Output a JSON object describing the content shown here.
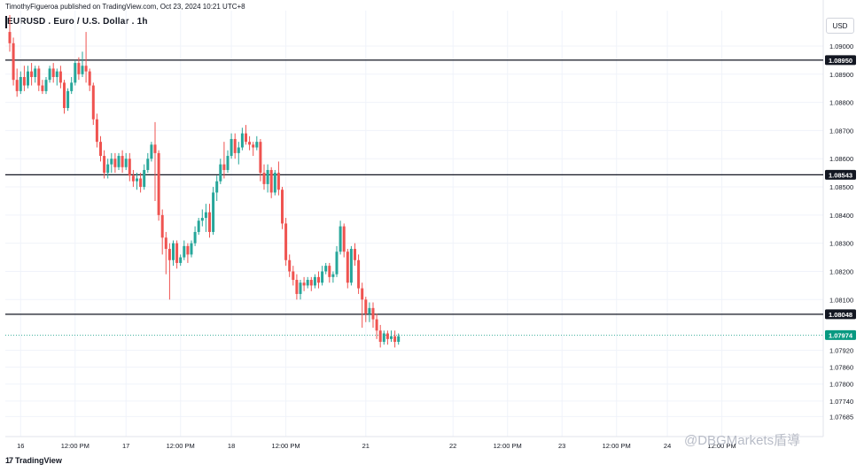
{
  "header": {
    "published": "TimothyFigueroa published on TradingView.com, Oct 23, 2024 10:21 UTC+8",
    "title": "EURUSD . Euro / U.S. Dollar . 1h",
    "currency": "USD"
  },
  "watermark": "@DBGMarkets盾導",
  "brand": {
    "logo": "17",
    "label": "TradingView"
  },
  "colors": {
    "up": "#26a69a",
    "down": "#ef5350",
    "level": "#131722",
    "current": "#089981",
    "grid": "#f0f3fa"
  },
  "chart_data": {
    "type": "candlestick",
    "symbol": "EURUSD",
    "timeframe": "1h",
    "ylim": [
      1.0762,
      1.0911
    ],
    "yticks": [
      {
        "value": 1.09,
        "label": "1.09000"
      },
      {
        "value": 1.089,
        "label": "1.08900"
      },
      {
        "value": 1.088,
        "label": "1.08800"
      },
      {
        "value": 1.087,
        "label": "1.08700"
      },
      {
        "value": 1.086,
        "label": "1.08600"
      },
      {
        "value": 1.085,
        "label": "1.08500"
      },
      {
        "value": 1.084,
        "label": "1.08400"
      },
      {
        "value": 1.083,
        "label": "1.08300"
      },
      {
        "value": 1.082,
        "label": "1.08200"
      },
      {
        "value": 1.081,
        "label": "1.08100"
      },
      {
        "value": 1.0792,
        "label": "1.07920"
      },
      {
        "value": 1.0786,
        "label": "1.07860"
      },
      {
        "value": 1.078,
        "label": "1.07800"
      },
      {
        "value": 1.0774,
        "label": "1.07740"
      },
      {
        "value": 1.07685,
        "label": "1.07685"
      }
    ],
    "xticks": [
      {
        "bar": 3,
        "label": "16"
      },
      {
        "bar": 18,
        "label": "12:00 PM"
      },
      {
        "bar": 32,
        "label": "17"
      },
      {
        "bar": 47,
        "label": "12:00 PM"
      },
      {
        "bar": 61,
        "label": "18"
      },
      {
        "bar": 76,
        "label": "12:00 PM"
      },
      {
        "bar": 98,
        "label": "21"
      },
      {
        "bar": 122,
        "label": "22"
      },
      {
        "bar": 137,
        "label": "12:00 PM"
      },
      {
        "bar": 152,
        "label": "23"
      },
      {
        "bar": 167,
        "label": "12:00 PM"
      },
      {
        "bar": 181,
        "label": "24"
      },
      {
        "bar": 196,
        "label": "12:00 PM"
      }
    ],
    "levels": [
      {
        "value": 1.0895,
        "label": "1.08950"
      },
      {
        "value": 1.08543,
        "label": "1.08543"
      },
      {
        "value": 1.08048,
        "label": "1.08048"
      }
    ],
    "current": {
      "value": 1.07974,
      "label": "1.07974"
    },
    "ohlc": [
      [
        1.0905,
        1.0911,
        1.0898,
        1.0901
      ],
      [
        1.0901,
        1.0903,
        1.0886,
        1.0888
      ],
      [
        1.0888,
        1.0892,
        1.0882,
        1.0884
      ],
      [
        1.0884,
        1.0891,
        1.0883,
        1.0889
      ],
      [
        1.0889,
        1.0893,
        1.0884,
        1.0886
      ],
      [
        1.0886,
        1.0893,
        1.0885,
        1.0891
      ],
      [
        1.0891,
        1.0894,
        1.0886,
        1.0889
      ],
      [
        1.0889,
        1.0893,
        1.0887,
        1.0892
      ],
      [
        1.0892,
        1.0893,
        1.0884,
        1.0886
      ],
      [
        1.0886,
        1.0888,
        1.0883,
        1.0884
      ],
      [
        1.0884,
        1.0889,
        1.0883,
        1.0888
      ],
      [
        1.0888,
        1.0893,
        1.0887,
        1.0892
      ],
      [
        1.0892,
        1.0894,
        1.0887,
        1.0889
      ],
      [
        1.0889,
        1.0892,
        1.0886,
        1.0891
      ],
      [
        1.0891,
        1.0893,
        1.0885,
        1.0887
      ],
      [
        1.0887,
        1.0888,
        1.0876,
        1.0878
      ],
      [
        1.0878,
        1.0885,
        1.0877,
        1.0884
      ],
      [
        1.0884,
        1.0889,
        1.0883,
        1.0887
      ],
      [
        1.0887,
        1.0895,
        1.0886,
        1.0894
      ],
      [
        1.0894,
        1.0896,
        1.0888,
        1.089
      ],
      [
        1.089,
        1.0898,
        1.0889,
        1.0893
      ],
      [
        1.0893,
        1.0905,
        1.0887,
        1.0891
      ],
      [
        1.0891,
        1.0892,
        1.0884,
        1.0886
      ],
      [
        1.0886,
        1.0887,
        1.0872,
        1.0874
      ],
      [
        1.0874,
        1.0876,
        1.0864,
        1.0866
      ],
      [
        1.0866,
        1.0868,
        1.0859,
        1.0861
      ],
      [
        1.0861,
        1.0863,
        1.0853,
        1.0855
      ],
      [
        1.0855,
        1.086,
        1.0853,
        1.0858
      ],
      [
        1.0858,
        1.0862,
        1.0855,
        1.086
      ],
      [
        1.086,
        1.0862,
        1.0855,
        1.0857
      ],
      [
        1.0857,
        1.0862,
        1.0856,
        1.0861
      ],
      [
        1.0861,
        1.0863,
        1.0855,
        1.0857
      ],
      [
        1.0857,
        1.0862,
        1.0856,
        1.086
      ],
      [
        1.086,
        1.0862,
        1.0852,
        1.0854
      ],
      [
        1.0854,
        1.0856,
        1.085,
        1.0852
      ],
      [
        1.0852,
        1.0855,
        1.0849,
        1.0853
      ],
      [
        1.0853,
        1.0855,
        1.0848,
        1.085
      ],
      [
        1.085,
        1.0858,
        1.0849,
        1.0856
      ],
      [
        1.0856,
        1.0862,
        1.0855,
        1.086
      ],
      [
        1.086,
        1.0866,
        1.0859,
        1.0865
      ],
      [
        1.0865,
        1.0873,
        1.0845,
        1.0862
      ],
      [
        1.0862,
        1.0863,
        1.0838,
        1.084
      ],
      [
        1.084,
        1.0842,
        1.0826,
        1.0832
      ],
      [
        1.0832,
        1.0834,
        1.0819,
        1.0828
      ],
      [
        1.0828,
        1.083,
        1.081,
        1.0824
      ],
      [
        1.0824,
        1.0831,
        1.0822,
        1.083
      ],
      [
        1.083,
        1.0831,
        1.0821,
        1.0823
      ],
      [
        1.0823,
        1.0826,
        1.0822,
        1.0825
      ],
      [
        1.0825,
        1.0831,
        1.0824,
        1.0829
      ],
      [
        1.0829,
        1.083,
        1.0823,
        1.0826
      ],
      [
        1.0826,
        1.0831,
        1.0825,
        1.083
      ],
      [
        1.083,
        1.0836,
        1.0829,
        1.0834
      ],
      [
        1.0834,
        1.0839,
        1.0833,
        1.0838
      ],
      [
        1.0838,
        1.0842,
        1.0836,
        1.0839
      ],
      [
        1.0839,
        1.0844,
        1.0834,
        1.0841
      ],
      [
        1.0841,
        1.0844,
        1.0832,
        1.0834
      ],
      [
        1.0834,
        1.085,
        1.0833,
        1.0848
      ],
      [
        1.0848,
        1.0854,
        1.0845,
        1.0852
      ],
      [
        1.0852,
        1.086,
        1.0851,
        1.0858
      ],
      [
        1.0858,
        1.0866,
        1.0853,
        1.0856
      ],
      [
        1.0856,
        1.0863,
        1.0855,
        1.0861
      ],
      [
        1.0861,
        1.0869,
        1.086,
        1.0867
      ],
      [
        1.0867,
        1.0869,
        1.086,
        1.0862
      ],
      [
        1.0862,
        1.0866,
        1.0858,
        1.0864
      ],
      [
        1.0864,
        1.0871,
        1.0863,
        1.0869
      ],
      [
        1.0869,
        1.0872,
        1.0865,
        1.0866
      ],
      [
        1.0866,
        1.0868,
        1.0863,
        1.0865
      ],
      [
        1.0865,
        1.0866,
        1.0861,
        1.0864
      ],
      [
        1.0864,
        1.0868,
        1.0863,
        1.0866
      ],
      [
        1.0866,
        1.0867,
        1.0852,
        1.0855
      ],
      [
        1.0855,
        1.0858,
        1.0849,
        1.0851
      ],
      [
        1.0851,
        1.0858,
        1.0848,
        1.0856
      ],
      [
        1.0856,
        1.0857,
        1.0846,
        1.0848
      ],
      [
        1.0848,
        1.0856,
        1.0847,
        1.0855
      ],
      [
        1.0855,
        1.0859,
        1.0847,
        1.0849
      ],
      [
        1.0849,
        1.085,
        1.0835,
        1.0837
      ],
      [
        1.0837,
        1.0839,
        1.0822,
        1.0824
      ],
      [
        1.0824,
        1.0826,
        1.0818,
        1.082
      ],
      [
        1.082,
        1.0822,
        1.0815,
        1.0817
      ],
      [
        1.0817,
        1.0819,
        1.081,
        1.0812
      ],
      [
        1.0812,
        1.0817,
        1.081,
        1.0816
      ],
      [
        1.0816,
        1.0818,
        1.0813,
        1.0815
      ],
      [
        1.0815,
        1.0818,
        1.0814,
        1.0817
      ],
      [
        1.0817,
        1.0818,
        1.0813,
        1.0815
      ],
      [
        1.0815,
        1.0819,
        1.0814,
        1.0818
      ],
      [
        1.0818,
        1.082,
        1.0814,
        1.0816
      ],
      [
        1.0816,
        1.0822,
        1.0815,
        1.082
      ],
      [
        1.082,
        1.0823,
        1.0819,
        1.0822
      ],
      [
        1.0822,
        1.0823,
        1.0816,
        1.0818
      ],
      [
        1.0818,
        1.082,
        1.0816,
        1.0819
      ],
      [
        1.0819,
        1.0829,
        1.0818,
        1.0827
      ],
      [
        1.0827,
        1.0838,
        1.0826,
        1.0836
      ],
      [
        1.0836,
        1.0837,
        1.0825,
        1.0827
      ],
      [
        1.0827,
        1.0828,
        1.0814,
        1.0816
      ],
      [
        1.0816,
        1.0829,
        1.0815,
        1.0828
      ],
      [
        1.0828,
        1.083,
        1.0822,
        1.0824
      ],
      [
        1.0824,
        1.0826,
        1.0812,
        1.0814
      ],
      [
        1.0814,
        1.0816,
        1.08,
        1.081
      ],
      [
        1.081,
        1.0811,
        1.0802,
        1.0805
      ],
      [
        1.0805,
        1.0809,
        1.0802,
        1.0807
      ],
      [
        1.0807,
        1.0809,
        1.08,
        1.0803
      ],
      [
        1.0803,
        1.0805,
        1.0796,
        1.0799
      ],
      [
        1.0799,
        1.0801,
        1.0793,
        1.0795
      ],
      [
        1.0795,
        1.0799,
        1.0794,
        1.0798
      ],
      [
        1.0798,
        1.0799,
        1.0794,
        1.0796
      ],
      [
        1.0796,
        1.0799,
        1.0795,
        1.0797
      ],
      [
        1.0797,
        1.0799,
        1.0793,
        1.0795
      ],
      [
        1.0795,
        1.0798,
        1.0794,
        1.0797
      ]
    ]
  }
}
